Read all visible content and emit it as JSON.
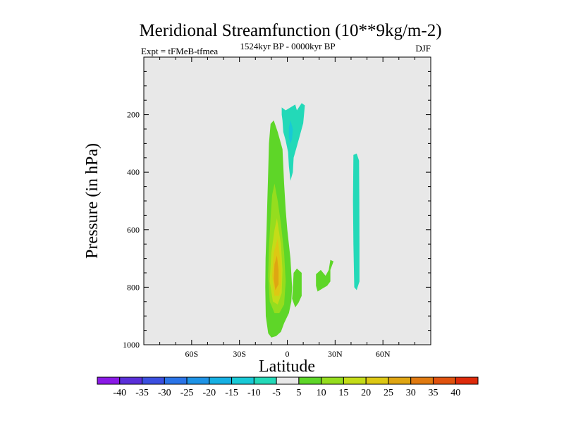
{
  "chart_data": {
    "type": "heatmap",
    "title": "Meridional Streamfunction (10**9kg/m-2)",
    "subtitle_left": "Expt = tFMeB-tfmea",
    "subtitle_center": "1524kyr BP - 0000kyr BP",
    "subtitle_right": "DJF",
    "xlabel": "Latitude",
    "ylabel": "Pressure (in hPa)",
    "xlim": [
      -90,
      90
    ],
    "ylim": [
      0,
      1000
    ],
    "y_inverted": true,
    "background": "#e8e8e8",
    "x_ticks": [
      {
        "value": -60,
        "label": "60S"
      },
      {
        "value": -30,
        "label": "30S"
      },
      {
        "value": 0,
        "label": "0"
      },
      {
        "value": 30,
        "label": "30N"
      },
      {
        "value": 60,
        "label": "60N"
      }
    ],
    "y_ticks": [
      {
        "value": 200,
        "label": "200"
      },
      {
        "value": 400,
        "label": "400"
      },
      {
        "value": 600,
        "label": "600"
      },
      {
        "value": 800,
        "label": "800"
      },
      {
        "value": 1000,
        "label": "1000"
      }
    ],
    "colorbar": {
      "labels": [
        "-40",
        "-35",
        "-30",
        "-25",
        "-20",
        "-15",
        "-10",
        "-5",
        "5",
        "10",
        "15",
        "20",
        "25",
        "30",
        "35",
        "40"
      ],
      "colors": [
        "#8a19e6",
        "#5a2fd9",
        "#3b4fe0",
        "#2a74e8",
        "#1e93e6",
        "#16b0e3",
        "#18c9d6",
        "#23d9b8",
        "#e8e8e8",
        "#5ed628",
        "#95dd1e",
        "#c4dc18",
        "#ddc814",
        "#dfa512",
        "#e07a10",
        "#e0520e",
        "#de2a0a"
      ]
    },
    "contours": [
      {
        "level": 5,
        "color": "#5ed628",
        "points": [
          [
            -10.5,
            232
          ],
          [
            -8.5,
            220
          ],
          [
            -6,
            260
          ],
          [
            -3,
            320
          ],
          [
            -2,
            440
          ],
          [
            -1,
            530
          ],
          [
            0,
            600
          ],
          [
            2,
            700
          ],
          [
            3,
            800
          ],
          [
            2.5,
            850
          ],
          [
            1,
            890
          ],
          [
            -2,
            925
          ],
          [
            -4,
            955
          ],
          [
            -7,
            970
          ],
          [
            -10,
            975
          ],
          [
            -12,
            960
          ],
          [
            -13.5,
            900
          ],
          [
            -13.8,
            800
          ],
          [
            -13.6,
            700
          ],
          [
            -13,
            600
          ],
          [
            -12.5,
            500
          ],
          [
            -12,
            400
          ],
          [
            -11.5,
            300
          ]
        ]
      },
      {
        "level": 5,
        "color": "#5ed628",
        "points": [
          [
            4,
            750
          ],
          [
            6,
            735
          ],
          [
            9,
            750
          ],
          [
            9,
            830
          ],
          [
            7,
            855
          ],
          [
            5,
            870
          ],
          [
            3,
            840
          ],
          [
            3.5,
            800
          ]
        ]
      },
      {
        "level": 5,
        "color": "#5ed628",
        "points": [
          [
            18,
            755
          ],
          [
            21,
            740
          ],
          [
            24,
            760
          ],
          [
            26,
            740
          ],
          [
            27,
            705
          ],
          [
            29,
            710
          ],
          [
            27,
            740
          ],
          [
            27,
            780
          ],
          [
            25,
            795
          ],
          [
            22,
            805
          ],
          [
            19,
            815
          ],
          [
            18,
            795
          ]
        ]
      },
      {
        "level": 10,
        "color": "#95dd1e",
        "points": [
          [
            -8,
            440
          ],
          [
            -6,
            500
          ],
          [
            -4,
            580
          ],
          [
            -2,
            680
          ],
          [
            -1,
            780
          ],
          [
            -2,
            860
          ],
          [
            -5,
            890
          ],
          [
            -8,
            890
          ],
          [
            -11,
            850
          ],
          [
            -12,
            760
          ],
          [
            -11.5,
            660
          ],
          [
            -10.5,
            560
          ],
          [
            -9.5,
            480
          ]
        ]
      },
      {
        "level": 15,
        "color": "#c4dc18",
        "points": [
          [
            -6.5,
            560
          ],
          [
            -4,
            650
          ],
          [
            -3,
            740
          ],
          [
            -3.5,
            820
          ],
          [
            -6,
            860
          ],
          [
            -9,
            850
          ],
          [
            -11,
            780
          ],
          [
            -10,
            680
          ],
          [
            -8,
            600
          ]
        ]
      },
      {
        "level": 20,
        "color": "#ddc814",
        "points": [
          [
            -6,
            630
          ],
          [
            -4.5,
            700
          ],
          [
            -4,
            780
          ],
          [
            -5,
            830
          ],
          [
            -8,
            830
          ],
          [
            -9.5,
            760
          ],
          [
            -8.5,
            680
          ]
        ]
      },
      {
        "level": 25,
        "color": "#dfa512",
        "points": [
          [
            -6.5,
            690
          ],
          [
            -5.5,
            740
          ],
          [
            -5.5,
            790
          ],
          [
            -7.5,
            810
          ],
          [
            -8.5,
            770
          ],
          [
            -8,
            720
          ]
        ]
      },
      {
        "level": -5,
        "color": "#23d9b8",
        "points": [
          [
            -3.5,
            175
          ],
          [
            -1,
            185
          ],
          [
            2,
            175
          ],
          [
            5,
            165
          ],
          [
            6,
            185
          ],
          [
            9,
            160
          ],
          [
            11,
            168
          ],
          [
            10,
            230
          ],
          [
            8,
            270
          ],
          [
            6,
            310
          ],
          [
            4,
            350
          ],
          [
            3.5,
            400
          ],
          [
            2,
            430
          ],
          [
            1,
            380
          ],
          [
            0.5,
            330
          ],
          [
            -1,
            290
          ],
          [
            -2.5,
            260
          ],
          [
            -3,
            220
          ],
          [
            -3.5,
            200
          ]
        ]
      },
      {
        "level": -10,
        "color": "#18c9d6",
        "points": [
          [
            1,
            245
          ],
          [
            2,
            220
          ],
          [
            3.5,
            250
          ],
          [
            3,
            285
          ],
          [
            2,
            300
          ],
          [
            1,
            280
          ]
        ]
      },
      {
        "level": -5,
        "color": "#23d9b8",
        "points": [
          [
            41.5,
            340
          ],
          [
            43.5,
            335
          ],
          [
            45,
            360
          ],
          [
            45.2,
            500
          ],
          [
            45.3,
            650
          ],
          [
            45.3,
            780
          ],
          [
            43.5,
            810
          ],
          [
            42,
            800
          ],
          [
            41.5,
            650
          ],
          [
            41.2,
            500
          ]
        ]
      }
    ]
  }
}
